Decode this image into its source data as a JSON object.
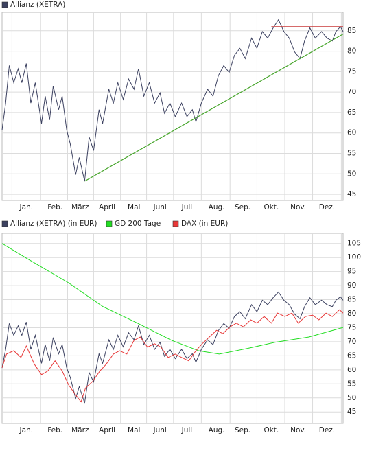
{
  "chart_data": [
    {
      "type": "line",
      "xlim": [
        0,
        380
      ],
      "ylim": [
        43.5,
        89.5
      ],
      "yticks": [
        45,
        50,
        55,
        60,
        65,
        70,
        75,
        80,
        85
      ],
      "xticks": [
        {
          "value": 27,
          "label": "Jan."
        },
        {
          "value": 59,
          "label": "Feb."
        },
        {
          "value": 87,
          "label": "März"
        },
        {
          "value": 117,
          "label": "April"
        },
        {
          "value": 147,
          "label": "Mai"
        },
        {
          "value": 176,
          "label": "Juni"
        },
        {
          "value": 206,
          "label": "Juli"
        },
        {
          "value": 239,
          "label": "Aug."
        },
        {
          "value": 268,
          "label": "Sep."
        },
        {
          "value": 300,
          "label": "Okt."
        },
        {
          "value": 330,
          "label": "Nov."
        },
        {
          "value": 362,
          "label": "Dez."
        }
      ],
      "xgrid": [
        11,
        43,
        73,
        102,
        132,
        161,
        191,
        222,
        254,
        284,
        315,
        346,
        378
      ],
      "grid": true,
      "series": [
        {
          "name": "Allianz (XETRA)",
          "color": "#3c4160",
          "x": [
            0,
            4,
            8,
            13,
            18,
            22,
            27,
            32,
            37,
            44,
            48,
            53,
            57,
            63,
            67,
            72,
            76,
            82,
            86,
            92,
            97,
            102,
            108,
            112,
            119,
            124,
            129,
            135,
            141,
            147,
            152,
            158,
            164,
            170,
            176,
            181,
            187,
            193,
            200,
            206,
            212,
            216,
            222,
            229,
            235,
            241,
            247,
            253,
            259,
            265,
            271,
            278,
            284,
            290,
            296,
            302,
            308,
            314,
            320,
            326,
            332,
            337,
            343,
            349,
            356,
            362,
            368,
            372,
            377,
            380
          ],
          "values": [
            60.7,
            67.3,
            76.5,
            72.3,
            75.7,
            72.3,
            77,
            67.3,
            72.3,
            62.3,
            69,
            63.2,
            71.5,
            65.7,
            69,
            60.7,
            57.3,
            49.8,
            54,
            48.2,
            59,
            55.7,
            65.7,
            62.3,
            70.7,
            67.3,
            72.3,
            68.2,
            73.2,
            70.7,
            75.7,
            69,
            72.3,
            67.3,
            69.8,
            64.8,
            67.3,
            64,
            67.3,
            64,
            65.7,
            62.7,
            67.3,
            70.7,
            69,
            74,
            76.5,
            74.8,
            79,
            80.7,
            78.2,
            83.2,
            80.7,
            84.8,
            83.2,
            85.7,
            87.7,
            84.8,
            83.2,
            79.8,
            78.2,
            82.5,
            85.7,
            83.2,
            84.8,
            83.2,
            82.5,
            84.8,
            86,
            84.8
          ]
        }
      ],
      "trendlines": [
        {
          "color": "#44a428",
          "x": [
            92,
            380
          ],
          "y": [
            48.2,
            84.2
          ]
        },
        {
          "color": "#c83838",
          "x": [
            300,
            380
          ],
          "y": [
            86,
            86
          ]
        }
      ]
    },
    {
      "type": "line",
      "xlim": [
        0,
        380
      ],
      "ylim": [
        40.9,
        108.6
      ],
      "yticks": [
        45,
        50,
        55,
        60,
        65,
        70,
        75,
        80,
        85,
        90,
        95,
        100,
        105
      ],
      "xticks": [
        {
          "value": 27,
          "label": "Jan."
        },
        {
          "value": 59,
          "label": "Feb."
        },
        {
          "value": 87,
          "label": "März"
        },
        {
          "value": 117,
          "label": "April"
        },
        {
          "value": 147,
          "label": "Mai"
        },
        {
          "value": 176,
          "label": "Juni"
        },
        {
          "value": 206,
          "label": "Juli"
        },
        {
          "value": 239,
          "label": "Aug."
        },
        {
          "value": 268,
          "label": "Sep."
        },
        {
          "value": 300,
          "label": "Okt."
        },
        {
          "value": 330,
          "label": "Nov."
        },
        {
          "value": 362,
          "label": "Dez."
        }
      ],
      "xgrid": [
        11,
        43,
        73,
        102,
        132,
        161,
        191,
        222,
        254,
        284,
        315,
        346,
        378
      ],
      "grid": true,
      "series": [
        {
          "name": "Allianz (XETRA) (in EUR)",
          "color": "#3c4160",
          "x": [
            0,
            4,
            8,
            13,
            18,
            22,
            27,
            32,
            37,
            44,
            48,
            53,
            57,
            63,
            67,
            72,
            76,
            82,
            86,
            92,
            97,
            102,
            108,
            112,
            119,
            124,
            129,
            135,
            141,
            147,
            152,
            158,
            164,
            170,
            176,
            181,
            187,
            193,
            200,
            206,
            212,
            216,
            222,
            229,
            235,
            241,
            247,
            253,
            259,
            265,
            271,
            278,
            284,
            290,
            296,
            302,
            308,
            314,
            320,
            326,
            332,
            337,
            343,
            349,
            356,
            362,
            368,
            372,
            377,
            380
          ],
          "values": [
            60.7,
            67.3,
            76.5,
            72.3,
            75.7,
            72.3,
            77,
            67.3,
            72.3,
            62.3,
            69,
            63.2,
            71.5,
            65.7,
            69,
            60.7,
            57.3,
            49.8,
            54,
            48.2,
            59,
            55.7,
            65.7,
            62.3,
            70.7,
            67.3,
            72.3,
            68.2,
            73.2,
            70.7,
            75.7,
            69,
            72.3,
            67.3,
            69.8,
            64.8,
            67.3,
            64,
            67.3,
            64,
            65.7,
            62.7,
            67.3,
            70.7,
            69,
            74,
            76.5,
            74.8,
            79,
            80.7,
            78.2,
            83.2,
            80.7,
            84.8,
            83.2,
            85.7,
            87.7,
            84.8,
            83.2,
            79.8,
            78.2,
            82.5,
            85.7,
            83.2,
            84.8,
            83.2,
            82.5,
            84.8,
            86,
            84.8
          ]
        },
        {
          "name": "GD 200 Tage",
          "color": "#22dd22",
          "x": [
            0,
            28,
            74,
            112,
            151,
            189,
            219,
            242,
            273,
            304,
            342,
            380
          ],
          "values": [
            105,
            99.6,
            91,
            82.6,
            76.6,
            70.5,
            66.8,
            65.6,
            67.6,
            69.8,
            71.7,
            75.1
          ]
        },
        {
          "name": "DAX (in EUR)",
          "color": "#e83838",
          "x": [
            0,
            5,
            13,
            21,
            27,
            36,
            44,
            51,
            59,
            67,
            74,
            82,
            88,
            93,
            101,
            109,
            116,
            124,
            131,
            139,
            147,
            154,
            162,
            170,
            177,
            185,
            193,
            200,
            208,
            216,
            223,
            231,
            239,
            246,
            254,
            261,
            269,
            277,
            284,
            292,
            300,
            307,
            315,
            323,
            330,
            338,
            346,
            353,
            361,
            368,
            376,
            380
          ],
          "values": [
            60.8,
            65.6,
            66.8,
            64.4,
            68.5,
            62,
            58.3,
            59.6,
            63.2,
            59.6,
            54.7,
            51.1,
            48.6,
            53.5,
            55.9,
            59.6,
            62,
            65.6,
            66.8,
            65.6,
            70.5,
            71.7,
            68.1,
            69.3,
            68.1,
            64.4,
            65.6,
            64.4,
            63.2,
            66.8,
            69.3,
            71.7,
            74.1,
            72.9,
            75.3,
            76.6,
            75.3,
            77.8,
            76.6,
            79,
            76.6,
            80.2,
            79,
            80.2,
            76.6,
            79,
            79.5,
            77.8,
            80.2,
            79,
            81.4,
            80.2
          ]
        }
      ]
    }
  ]
}
